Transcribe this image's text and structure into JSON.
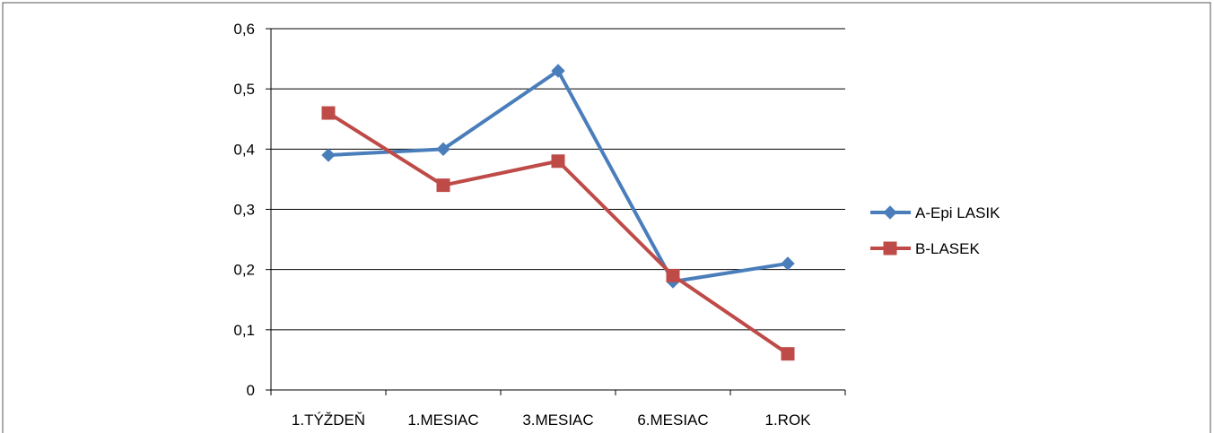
{
  "chart_data": {
    "type": "line",
    "title": "",
    "xlabel": "",
    "ylabel": "",
    "categories": [
      "1.TÝŽDEŇ",
      "1.MESIAC",
      "3.MESIAC",
      "6.MESIAC",
      "1.ROK"
    ],
    "y_ticks": [
      "0",
      "0,1",
      "0,2",
      "0,3",
      "0,4",
      "0,5",
      "0,6"
    ],
    "ylim": [
      0,
      0.6
    ],
    "grid": true,
    "legend_position": "right",
    "series": [
      {
        "name": "A-Epi LASIK",
        "values": [
          0.39,
          0.4,
          0.53,
          0.18,
          0.21
        ],
        "color": "#4a7ebb",
        "marker": "diamond"
      },
      {
        "name": "B-LASEK",
        "values": [
          0.46,
          0.34,
          0.38,
          0.19,
          0.06
        ],
        "color": "#be4b48",
        "marker": "square"
      }
    ]
  }
}
